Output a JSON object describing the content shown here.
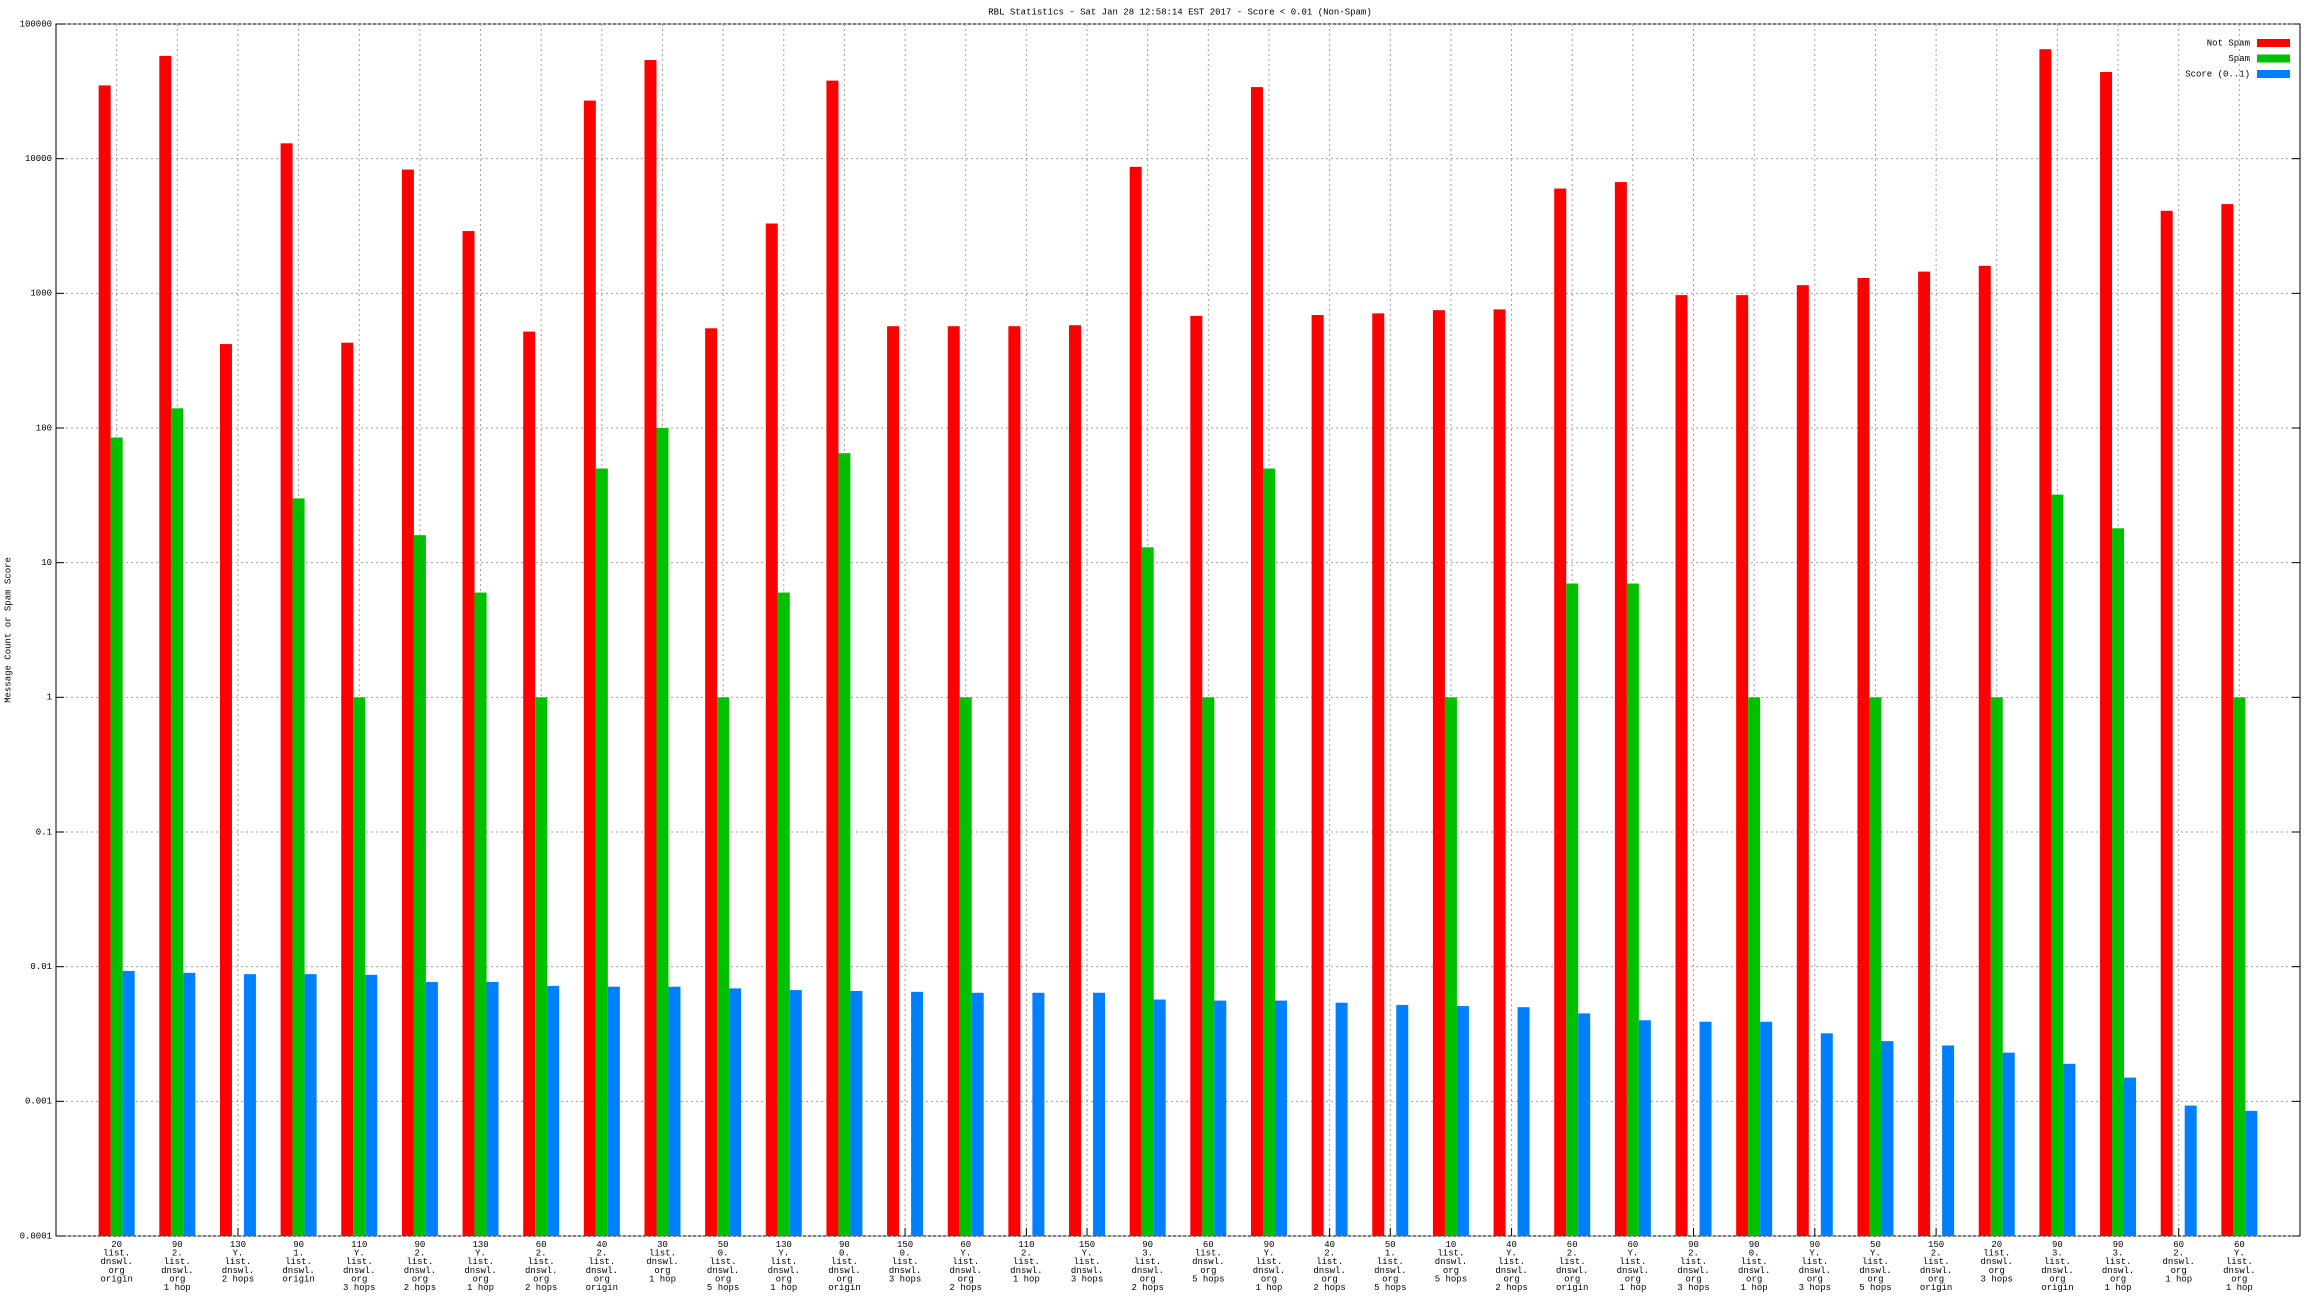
{
  "chart_data": {
    "type": "bar",
    "title": "RBL Statistics - Sat Jan 28 12:58:14 EST 2017 - Score < 0.01 (Non-Spam)",
    "y_label": "Message Count or Spam Score",
    "log_scale": true,
    "grid": true,
    "legend": "top-right",
    "ylim": [
      0.0001,
      100000
    ],
    "yticks": [
      0.0001,
      0.001,
      0.01,
      0.1,
      1,
      10,
      100,
      1000,
      10000,
      100000
    ],
    "categories": [
      "20\nlist.\ndnswl.\norg\norigin",
      "90\n2.\nlist.\ndnswl.\norg\n1 hop",
      "130\nY.\nlist.\ndnswl.\n2 hops",
      "90\n1.\nlist.\ndnswl.\norigin",
      "110\nY.\nlist.\ndnswl.\norg\n3 hops",
      "90\n2.\nlist.\ndnswl.\norg\n2 hops",
      "130\nY.\nlist.\ndnswl.\norg\n1 hop",
      "60\n2.\nlist.\ndnswl.\norg\n2 hops",
      "40\n2.\nlist.\ndnswl.\norg\norigin",
      "30\nlist.\ndnswl.\norg\n1 hop",
      "50\n0.\nlist.\ndnswl.\norg\n5 hops",
      "130\nY.\nlist.\ndnswl.\norg\n1 hop",
      "90\n0.\nlist.\ndnswl.\norg\norigin",
      "150\n0.\nlist.\ndnswl.\n3 hops",
      "60\nY.\nlist.\ndnswl.\norg\n2 hops",
      "110\n2.\nlist.\ndnswl.\n1 hop",
      "150\nY.\nlist.\ndnswl.\n3 hops",
      "90\n3.\nlist.\ndnswl.\norg\n2 hops",
      "60\nlist.\ndnswl.\norg\n5 hops",
      "90\nY.\nlist.\ndnswl.\norg\n1 hop",
      "40\n2.\nlist.\ndnswl.\norg\n2 hops",
      "50\n1.\nlist.\ndnswl.\norg\n5 hops",
      "10\nlist.\ndnswl.\norg\n5 hops",
      "40\nY.\nlist.\ndnswl.\norg\n2 hops",
      "60\n2.\nlist.\ndnswl.\norg\norigin",
      "60\nY.\nlist.\ndnswl.\norg\n1 hop",
      "90\n2.\nlist.\ndnswl.\norg\n3 hops",
      "90\n0.\nlist.\ndnswl.\norg\n1 hop",
      "90\nY.\nlist.\ndnswl.\norg\n3 hops",
      "50\nY.\nlist.\ndnswl.\norg\n5 hops",
      "150\n2.\nlist.\ndnswl.\norg\norigin",
      "20\nlist.\ndnswl.\norg\n3 hops",
      "90\n3.\nlist.\ndnswl.\norg\norigin",
      "90\n3.\nlist.\ndnswl.\norg\n1 hop",
      "60\n2.\ndnswl.\norg\n1 hop",
      "60\nY.\nlist.\ndnswl.\norg\n1 hop"
    ],
    "series": [
      {
        "name": "Not Spam",
        "color": "#ff0000",
        "values": [
          35000,
          58000,
          420,
          13000,
          430,
          8300,
          2900,
          520,
          27000,
          54000,
          550,
          3300,
          38000,
          570,
          570,
          570,
          580,
          8700,
          680,
          34000,
          690,
          710,
          750,
          760,
          6000,
          6700,
          970,
          970,
          1150,
          1300,
          1450,
          1600,
          65000,
          44000,
          4100,
          4600
        ]
      },
      {
        "name": "Spam",
        "color": "#00c000",
        "values": [
          85,
          140,
          null,
          30,
          1,
          16,
          6,
          1,
          50,
          100,
          1,
          6,
          65,
          null,
          1,
          null,
          null,
          13,
          1,
          50,
          null,
          null,
          1,
          null,
          7,
          7,
          null,
          1,
          null,
          1,
          null,
          1,
          32,
          18,
          null,
          1
        ]
      },
      {
        "name": "Score (0..1)",
        "color": "#0080ff",
        "values": [
          0.0093,
          0.009,
          0.0088,
          0.0088,
          0.0087,
          0.0077,
          0.0077,
          0.0072,
          0.0071,
          0.0071,
          0.0069,
          0.0067,
          0.0066,
          0.0065,
          0.0064,
          0.0064,
          0.0064,
          0.0057,
          0.0056,
          0.0056,
          0.0054,
          0.0052,
          0.0051,
          0.005,
          0.0045,
          0.004,
          0.0039,
          0.0039,
          0.0032,
          0.0028,
          0.0026,
          0.0023,
          0.0019,
          0.0015,
          0.00093,
          0.00085
        ]
      }
    ]
  }
}
